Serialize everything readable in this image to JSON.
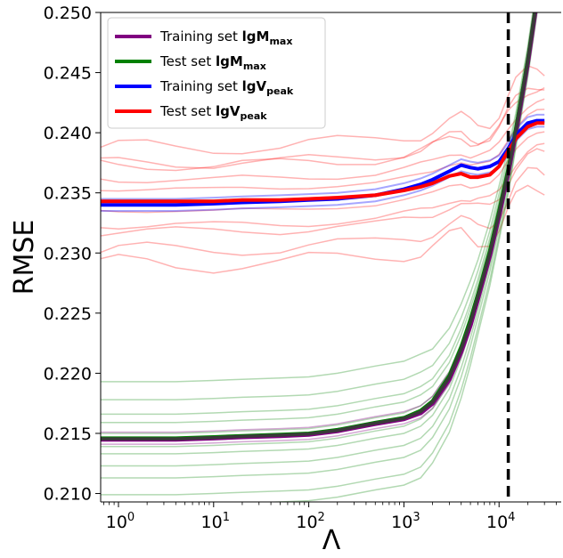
{
  "chart_data": {
    "type": "line",
    "title": "",
    "xlabel": "Λ",
    "ylabel": "RMSE",
    "x_scale": "log",
    "xlim": [
      0.65,
      45000
    ],
    "ylim": [
      0.2093,
      0.25
    ],
    "grid": false,
    "legend_position": "top-left",
    "x_ticks": [
      {
        "value": 1,
        "base": "10",
        "exp": "0"
      },
      {
        "value": 10,
        "base": "10",
        "exp": "1"
      },
      {
        "value": 100,
        "base": "10",
        "exp": "2"
      },
      {
        "value": 1000,
        "base": "10",
        "exp": "3"
      },
      {
        "value": 10000,
        "base": "10",
        "exp": "4"
      }
    ],
    "y_ticks": [
      "0.210",
      "0.215",
      "0.220",
      "0.225",
      "0.230",
      "0.235",
      "0.240",
      "0.245",
      "0.250"
    ],
    "vertical_line": {
      "x": 12500,
      "style": "dashed",
      "color": "#000000"
    },
    "x": [
      0.65,
      1,
      2,
      4,
      10,
      20,
      50,
      100,
      200,
      500,
      1000,
      1500,
      2000,
      3000,
      4000,
      5000,
      6000,
      8000,
      10000,
      12500,
      15000,
      20000,
      25000,
      30000
    ],
    "series": [
      {
        "name": "Training set lgM",
        "label": {
          "main": "Training set ",
          "bold": "lgM",
          "sub": "max"
        },
        "color": "#800080",
        "values": [
          0.2145,
          0.2145,
          0.2145,
          0.2145,
          0.2146,
          0.2147,
          0.2148,
          0.2149,
          0.2152,
          0.2158,
          0.2162,
          0.2167,
          0.2175,
          0.2195,
          0.2218,
          0.224,
          0.2262,
          0.2298,
          0.2331,
          0.2367,
          0.24,
          0.2458,
          0.251,
          0.256
        ]
      },
      {
        "name": "Test set lgM",
        "label": {
          "main": "Test set ",
          "bold": "lgM",
          "sub": "max"
        },
        "color": "#008000",
        "values": [
          0.2146,
          0.2146,
          0.2146,
          0.2146,
          0.2147,
          0.2148,
          0.2149,
          0.215,
          0.2153,
          0.2159,
          0.2163,
          0.2169,
          0.2177,
          0.2198,
          0.2222,
          0.2245,
          0.2266,
          0.2302,
          0.2335,
          0.237,
          0.2403,
          0.246,
          0.2512,
          0.2562
        ]
      },
      {
        "name": "Training set lgV",
        "label": {
          "main": "Training set ",
          "bold": "lgV",
          "sub": "peak"
        },
        "color": "#0000ff",
        "values": [
          0.234,
          0.234,
          0.234,
          0.234,
          0.2341,
          0.2342,
          0.2343,
          0.2344,
          0.2345,
          0.2348,
          0.2353,
          0.2357,
          0.2361,
          0.2368,
          0.2373,
          0.2371,
          0.237,
          0.2372,
          0.2376,
          0.2387,
          0.2398,
          0.2408,
          0.241,
          0.241
        ]
      },
      {
        "name": "Test set lgV",
        "label": {
          "main": "Test set ",
          "bold": "lgV",
          "sub": "peak"
        },
        "color": "#ff0000",
        "values": [
          0.2343,
          0.2343,
          0.2343,
          0.2343,
          0.2343,
          0.2344,
          0.2344,
          0.2345,
          0.2346,
          0.2348,
          0.2352,
          0.2355,
          0.2358,
          0.2364,
          0.2366,
          0.2363,
          0.2363,
          0.2365,
          0.2372,
          0.2385,
          0.2395,
          0.2405,
          0.2408,
          0.2408
        ]
      }
    ],
    "ensemble_offsets": {
      "red": [
        0.0045,
        0.0032,
        0.003,
        0.0018,
        0.001,
        0.0001,
        -0.0008,
        -0.002,
        -0.0025,
        -0.004,
        -0.0052
      ],
      "green": [
        0.0047,
        0.0032,
        0.002,
        0.0013,
        0.0004,
        -0.0007,
        -0.0013,
        -0.0023,
        -0.0033,
        -0.0047,
        -0.0056
      ],
      "purple": [
        0.0006,
        -0.0004
      ],
      "blue": [
        0.0005,
        -0.0005
      ]
    }
  }
}
